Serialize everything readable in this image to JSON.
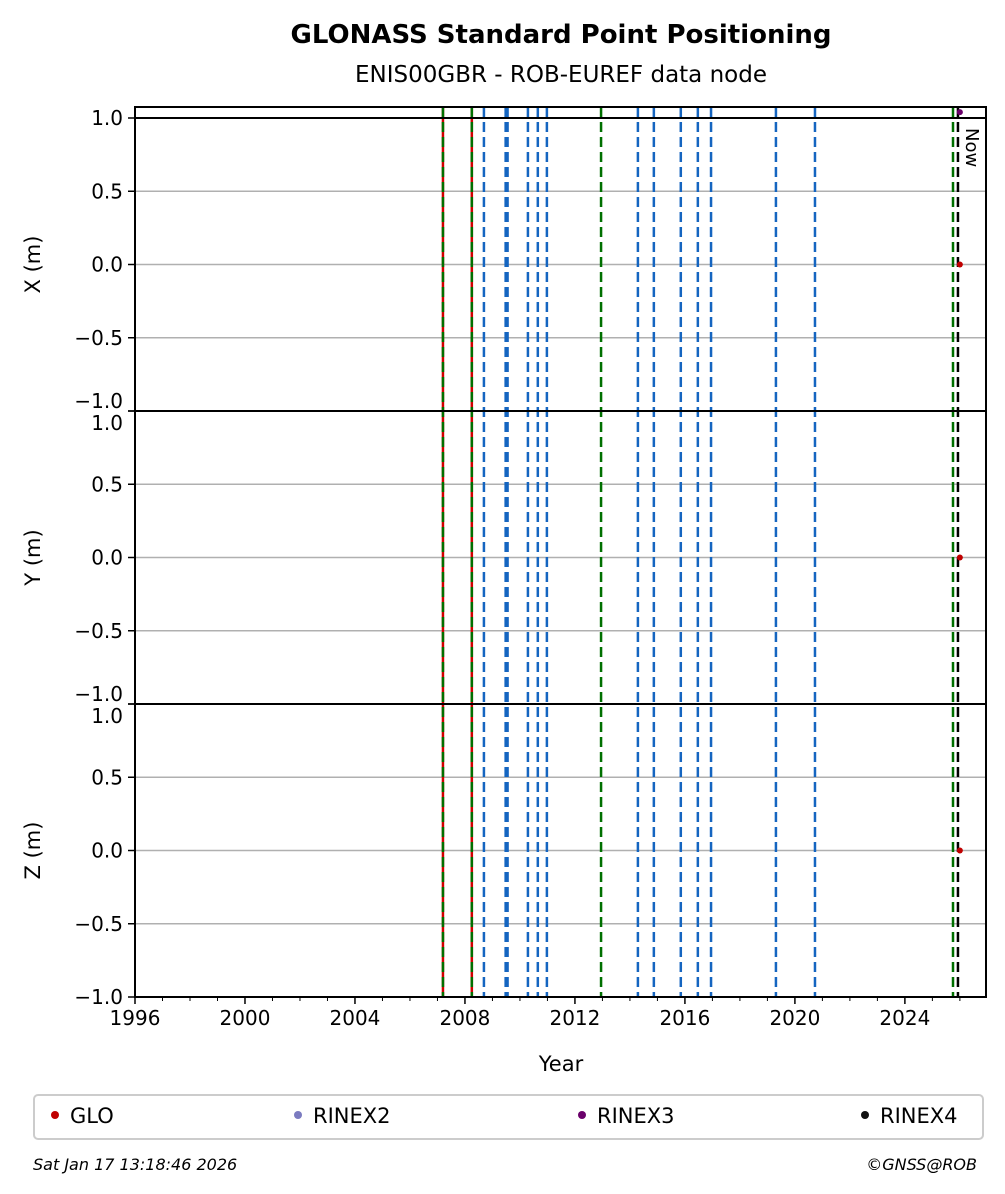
{
  "chart_data": {
    "type": "scatter",
    "title": "GLONASS Standard Point Positioning",
    "subtitle": "ENIS00GBR - ROB-EUREF data node",
    "xlabel": "Year",
    "xlim": [
      1996,
      2026.95
    ],
    "xticks": [
      "1996",
      "2000",
      "2004",
      "2008",
      "2012",
      "2016",
      "2020",
      "2024"
    ],
    "grid": true,
    "panels": [
      {
        "ylabel": "X (m)",
        "ylim": [
          -1.0,
          1.075
        ],
        "yticks": [
          "−1.0",
          "−0.5",
          "0.0",
          "0.5",
          "1.0"
        ]
      },
      {
        "ylabel": "Y (m)",
        "ylim": [
          -1.0,
          1.0
        ],
        "yticks": [
          "−1.0",
          "−0.5",
          "0.0",
          "0.5",
          "1.0"
        ]
      },
      {
        "ylabel": "Z (m)",
        "ylim": [
          -1.0,
          1.0
        ],
        "yticks": [
          "−1.0",
          "−0.5",
          "0.0",
          "0.5",
          "1.0"
        ]
      }
    ],
    "events": [
      {
        "year": 2007.2,
        "color": "red-green"
      },
      {
        "year": 2008.25,
        "color": "red-green"
      },
      {
        "year": 2008.69,
        "color": "#1565c0"
      },
      {
        "year": 2009.48,
        "color": "#1565c0"
      },
      {
        "year": 2009.55,
        "color": "#1565c0"
      },
      {
        "year": 2010.29,
        "color": "#1565c0"
      },
      {
        "year": 2010.65,
        "color": "#1565c0"
      },
      {
        "year": 2010.98,
        "color": "#1565c0"
      },
      {
        "year": 2012.95,
        "color": "#007000"
      },
      {
        "year": 2014.29,
        "color": "#1565c0"
      },
      {
        "year": 2014.87,
        "color": "#1565c0"
      },
      {
        "year": 2015.85,
        "color": "#1565c0"
      },
      {
        "year": 2016.47,
        "color": "#1565c0"
      },
      {
        "year": 2016.95,
        "color": "#1565c0"
      },
      {
        "year": 2019.31,
        "color": "#1565c0"
      },
      {
        "year": 2020.73,
        "color": "#1565c0"
      },
      {
        "year": 2025.75,
        "color": "#007000"
      }
    ],
    "now": {
      "year": 2025.93,
      "label": "Now"
    },
    "series": [
      {
        "name": "GLO",
        "color": "#c00000",
        "points": [
          {
            "panel": 0,
            "x": 2026.0,
            "y": 0.0
          },
          {
            "panel": 1,
            "x": 2026.0,
            "y": 0.0
          },
          {
            "panel": 2,
            "x": 2026.0,
            "y": 0.0
          }
        ]
      },
      {
        "name": "RINEX2",
        "color": "#7b7bc0",
        "points": []
      },
      {
        "name": "RINEX3",
        "color": "#6a006a",
        "points": [
          {
            "panel": 0,
            "x": 2026.0,
            "y": 1.04
          }
        ]
      },
      {
        "name": "RINEX4",
        "color": "#111111",
        "points": []
      }
    ],
    "legend": "bottom"
  },
  "footer": {
    "timestamp": "Sat Jan 17 13:18:46 2026",
    "copyright": "©GNSS@ROB"
  }
}
